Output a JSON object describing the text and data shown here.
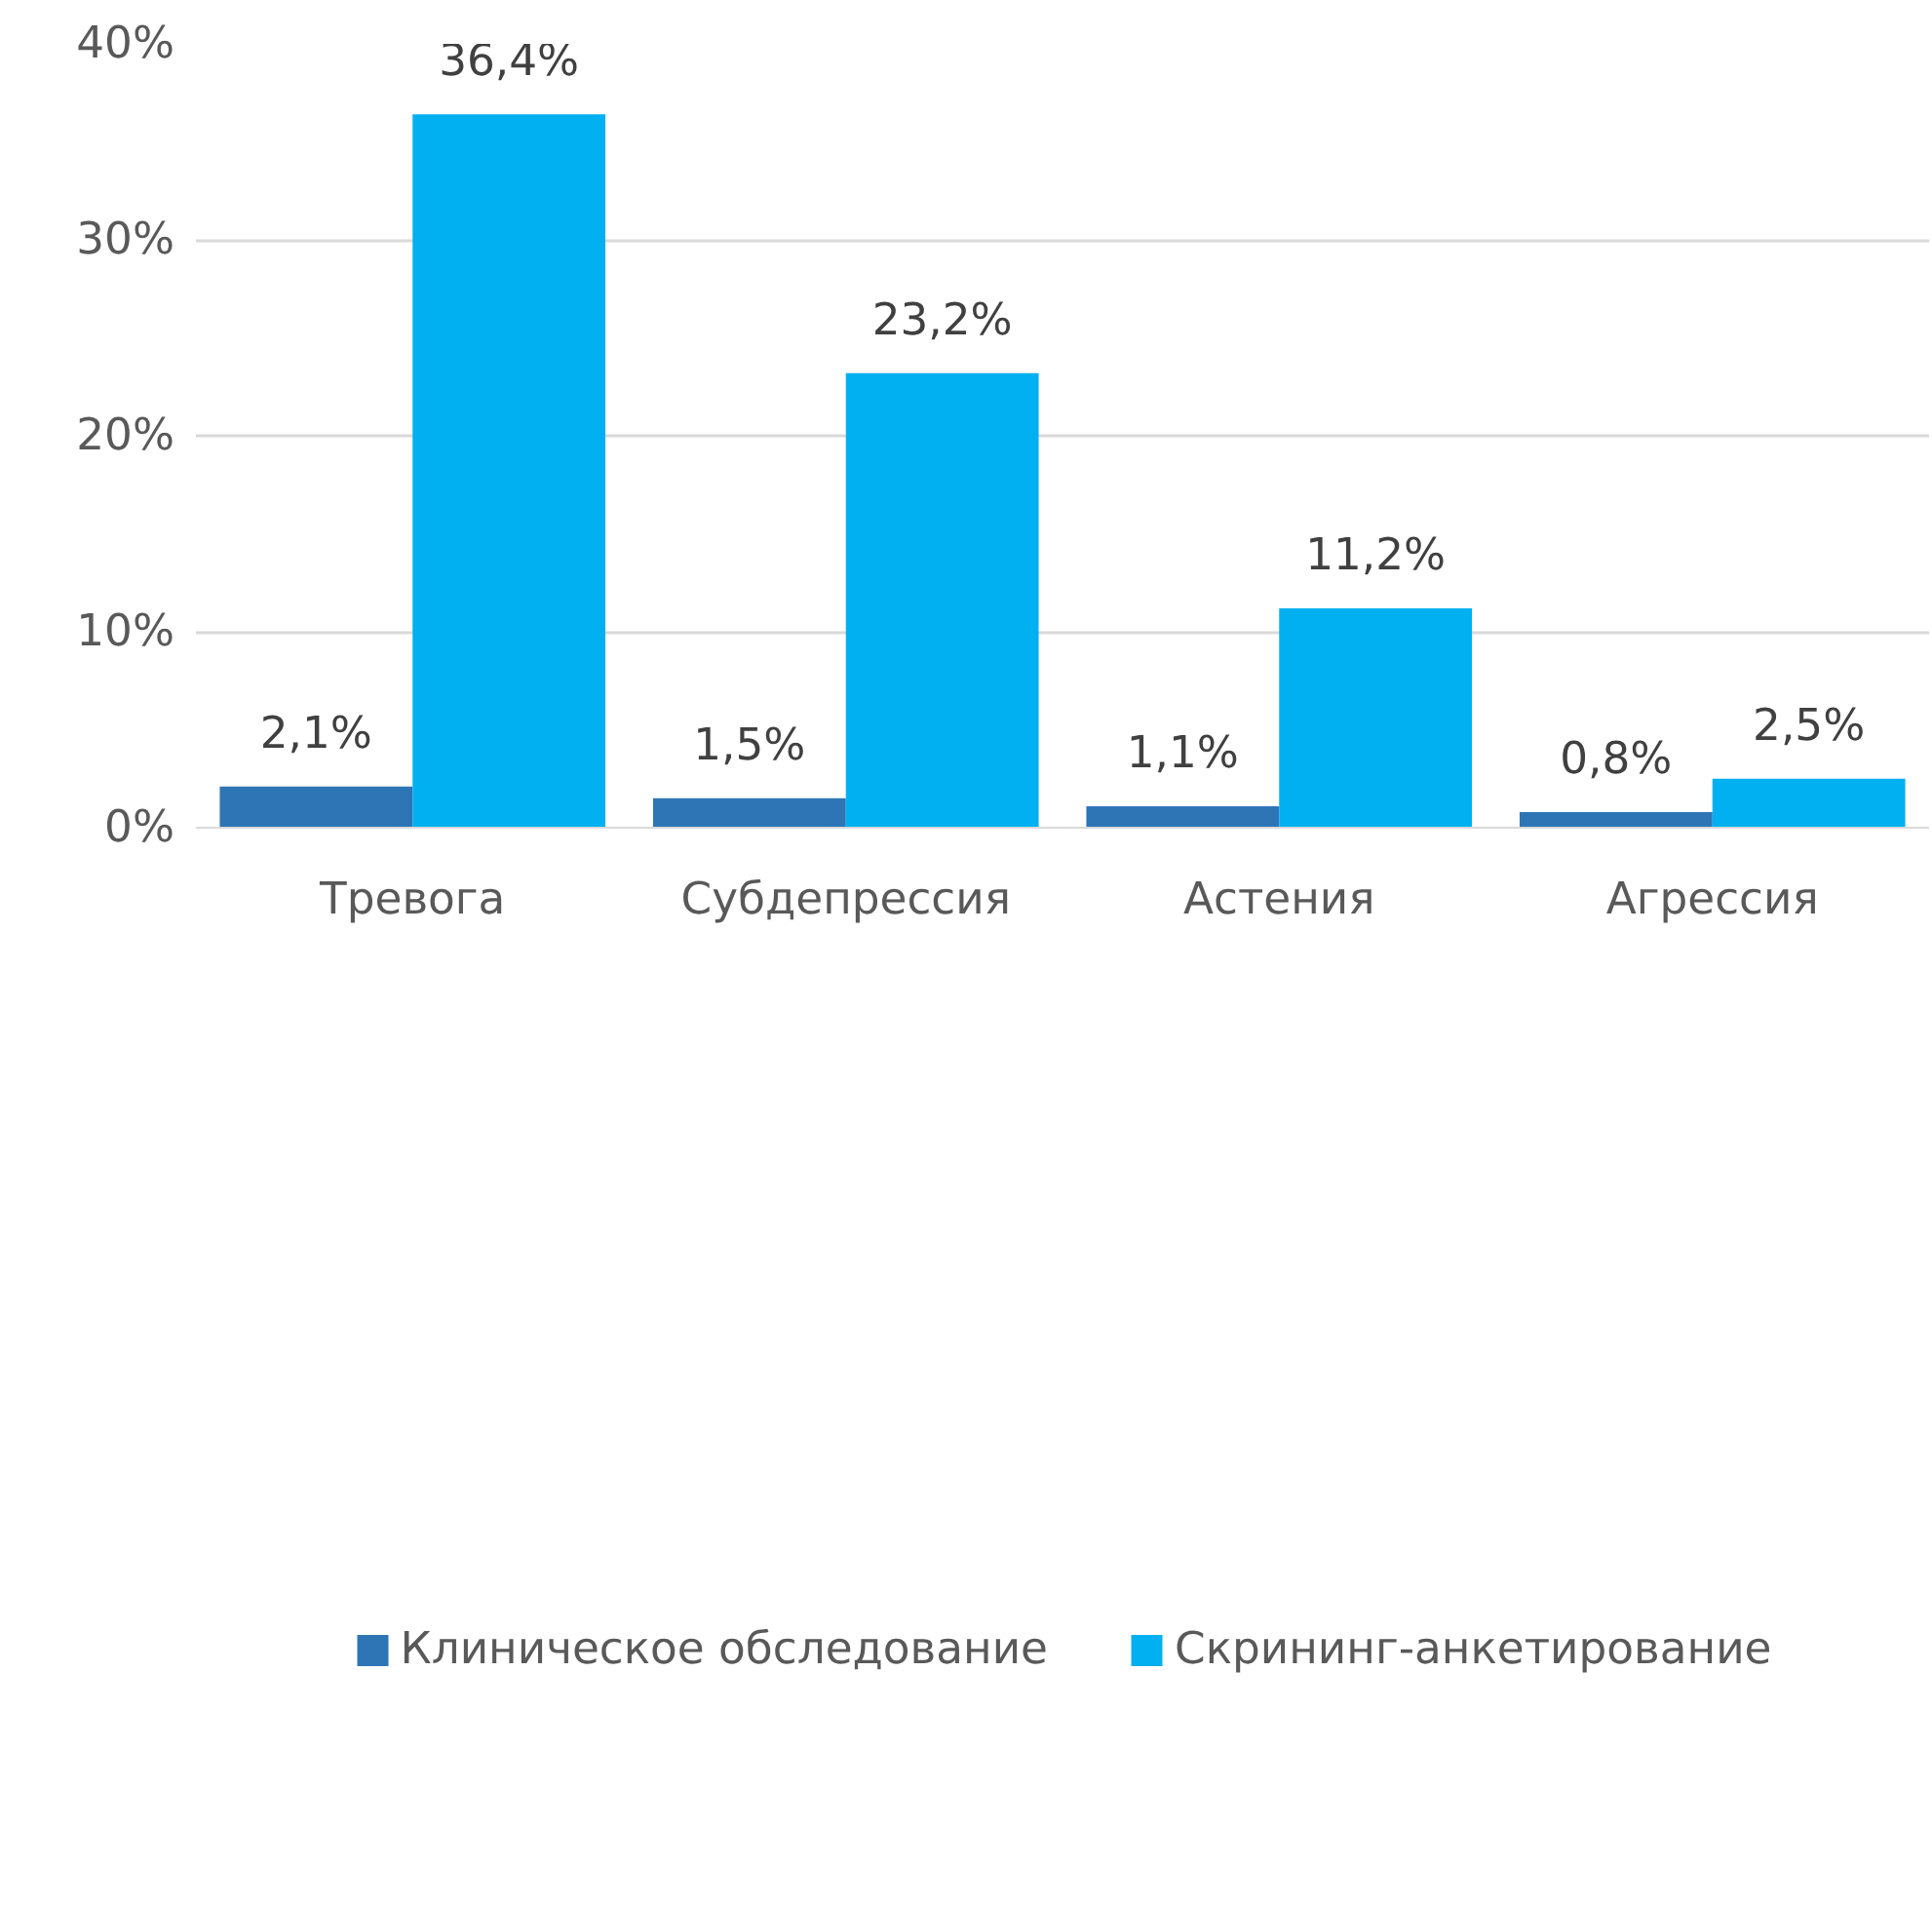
{
  "chart_data": {
    "type": "bar",
    "categories": [
      "Тревога",
      "Субдепрессия",
      "Астения",
      "Агрессия"
    ],
    "series": [
      {
        "name": "Клиническое обследование",
        "color": "#2e75b6",
        "values": [
          2.1,
          1.5,
          1.1,
          0.8
        ],
        "value_labels": [
          "2,1%",
          "1,5%",
          "1,1%",
          "0,8%"
        ]
      },
      {
        "name": "Скрининг-анкетирование",
        "color": "#00b0f0",
        "values": [
          36.4,
          23.2,
          11.2,
          2.5
        ],
        "value_labels": [
          "36,4%",
          "23,2%",
          "11,2%",
          "2,5%"
        ]
      }
    ],
    "ylim": [
      0,
      40
    ],
    "yticks": [
      {
        "value": 0,
        "label": "0%"
      },
      {
        "value": 10,
        "label": "10%"
      },
      {
        "value": 20,
        "label": "20%"
      },
      {
        "value": 30,
        "label": "30%"
      },
      {
        "value": 40,
        "label": "40%"
      }
    ],
    "grid": "y",
    "legend": "bottom"
  }
}
